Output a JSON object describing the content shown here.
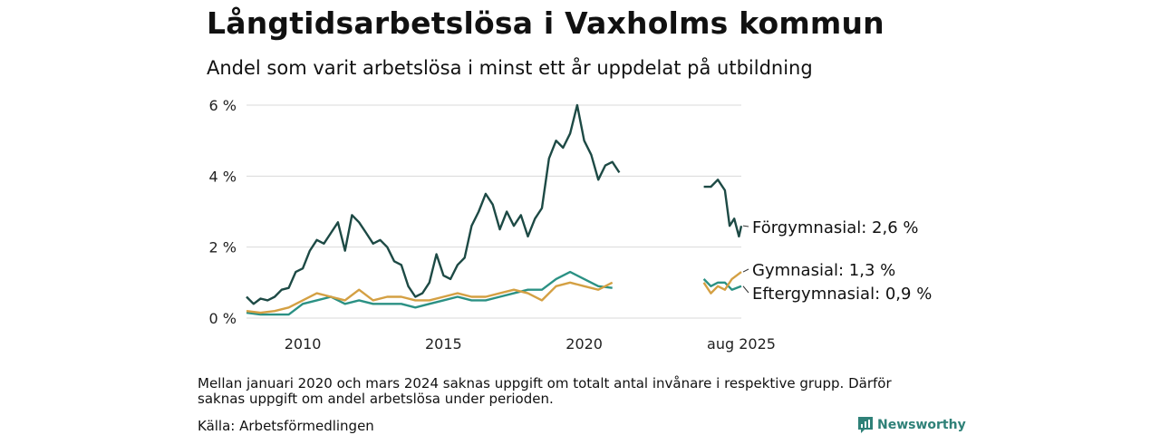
{
  "title": "Långtidsarbetslösa i Vaxholms kommun",
  "subtitle": "Andel som varit arbetslösa i minst ett år uppdelat på utbildning",
  "note": "Mellan januari 2020 och mars 2024 saknas uppgift om totalt antal invånare i respektive grupp. Därför saknas uppgift om andel arbetslösa under perioden.",
  "source": "Källa: Arbetsförmedlingen",
  "brand": "Newsworthy",
  "colors": {
    "forgymnasial": "#1d4a45",
    "gymnasial": "#d4a043",
    "eftergymnasial": "#2b9184",
    "grid": "#d9d9d9",
    "brand": "#2f8178"
  },
  "chart_data": {
    "type": "line",
    "x_tick_labels": [
      "2010",
      "2015",
      "2020",
      "aug 2025"
    ],
    "y_tick_labels": [
      "0 %",
      "2 %",
      "4 %",
      "6 %"
    ],
    "ylim": [
      0,
      6
    ],
    "grid": "horizontal",
    "note": "x values are dates (YYYY-MM); y values in percent",
    "series": [
      {
        "name": "Förgymnasial",
        "label": "Förgymnasial: 2,6 %",
        "color": "#1d4a45",
        "segments": [
          [
            [
              "2008-01",
              0.6
            ],
            [
              "2008-04",
              0.4
            ],
            [
              "2008-07",
              0.55
            ],
            [
              "2008-10",
              0.5
            ],
            [
              "2009-01",
              0.6
            ],
            [
              "2009-04",
              0.8
            ],
            [
              "2009-07",
              0.85
            ],
            [
              "2009-10",
              1.3
            ],
            [
              "2010-01",
              1.4
            ],
            [
              "2010-04",
              1.9
            ],
            [
              "2010-07",
              2.2
            ],
            [
              "2010-10",
              2.1
            ],
            [
              "2011-01",
              2.4
            ],
            [
              "2011-04",
              2.7
            ],
            [
              "2011-07",
              1.9
            ],
            [
              "2011-10",
              2.9
            ],
            [
              "2012-01",
              2.7
            ],
            [
              "2012-04",
              2.4
            ],
            [
              "2012-07",
              2.1
            ],
            [
              "2012-10",
              2.2
            ],
            [
              "2013-01",
              2.0
            ],
            [
              "2013-04",
              1.6
            ],
            [
              "2013-07",
              1.5
            ],
            [
              "2013-10",
              0.9
            ],
            [
              "2014-01",
              0.6
            ],
            [
              "2014-04",
              0.7
            ],
            [
              "2014-07",
              1.0
            ],
            [
              "2014-10",
              1.8
            ],
            [
              "2015-01",
              1.2
            ],
            [
              "2015-04",
              1.1
            ],
            [
              "2015-07",
              1.5
            ],
            [
              "2015-10",
              1.7
            ],
            [
              "2016-01",
              2.6
            ],
            [
              "2016-04",
              3.0
            ],
            [
              "2016-07",
              3.5
            ],
            [
              "2016-10",
              3.2
            ],
            [
              "2017-01",
              2.5
            ],
            [
              "2017-04",
              3.0
            ],
            [
              "2017-07",
              2.6
            ],
            [
              "2017-10",
              2.9
            ],
            [
              "2018-01",
              2.3
            ],
            [
              "2018-04",
              2.8
            ],
            [
              "2018-07",
              3.1
            ],
            [
              "2018-10",
              4.5
            ],
            [
              "2019-01",
              5.0
            ],
            [
              "2019-04",
              4.8
            ],
            [
              "2019-07",
              5.2
            ],
            [
              "2019-10",
              6.0
            ],
            [
              "2020-01",
              5.0
            ],
            [
              "2020-04",
              4.6
            ],
            [
              "2020-07",
              3.9
            ],
            [
              "2020-10",
              4.3
            ],
            [
              "2021-01",
              4.4
            ],
            [
              "2021-04",
              4.1
            ]
          ],
          [
            [
              "2024-04",
              3.7
            ],
            [
              "2024-07",
              3.7
            ],
            [
              "2024-10",
              3.9
            ],
            [
              "2025-01",
              3.6
            ],
            [
              "2025-03",
              2.6
            ],
            [
              "2025-05",
              2.8
            ],
            [
              "2025-07",
              2.3
            ],
            [
              "2025-08",
              2.6
            ]
          ]
        ]
      },
      {
        "name": "Gymnasial",
        "label": "Gymnasial: 1,3 %",
        "color": "#d4a043",
        "segments": [
          [
            [
              "2008-01",
              0.2
            ],
            [
              "2008-07",
              0.15
            ],
            [
              "2009-01",
              0.2
            ],
            [
              "2009-07",
              0.3
            ],
            [
              "2010-01",
              0.5
            ],
            [
              "2010-07",
              0.7
            ],
            [
              "2011-01",
              0.6
            ],
            [
              "2011-07",
              0.5
            ],
            [
              "2012-01",
              0.8
            ],
            [
              "2012-07",
              0.5
            ],
            [
              "2013-01",
              0.6
            ],
            [
              "2013-07",
              0.6
            ],
            [
              "2014-01",
              0.5
            ],
            [
              "2014-07",
              0.5
            ],
            [
              "2015-01",
              0.6
            ],
            [
              "2015-07",
              0.7
            ],
            [
              "2016-01",
              0.6
            ],
            [
              "2016-07",
              0.6
            ],
            [
              "2017-01",
              0.7
            ],
            [
              "2017-07",
              0.8
            ],
            [
              "2018-01",
              0.7
            ],
            [
              "2018-07",
              0.5
            ],
            [
              "2019-01",
              0.9
            ],
            [
              "2019-07",
              1.0
            ],
            [
              "2020-01",
              0.9
            ],
            [
              "2020-07",
              0.8
            ],
            [
              "2021-01",
              1.0
            ]
          ],
          [
            [
              "2024-04",
              1.0
            ],
            [
              "2024-07",
              0.7
            ],
            [
              "2024-10",
              0.9
            ],
            [
              "2025-01",
              0.8
            ],
            [
              "2025-04",
              1.1
            ],
            [
              "2025-08",
              1.3
            ]
          ]
        ]
      },
      {
        "name": "Eftergymnasial",
        "label": "Eftergymnasial: 0,9 %",
        "color": "#2b9184",
        "segments": [
          [
            [
              "2008-01",
              0.15
            ],
            [
              "2008-07",
              0.1
            ],
            [
              "2009-01",
              0.1
            ],
            [
              "2009-07",
              0.1
            ],
            [
              "2010-01",
              0.4
            ],
            [
              "2010-07",
              0.5
            ],
            [
              "2011-01",
              0.6
            ],
            [
              "2011-07",
              0.4
            ],
            [
              "2012-01",
              0.5
            ],
            [
              "2012-07",
              0.4
            ],
            [
              "2013-01",
              0.4
            ],
            [
              "2013-07",
              0.4
            ],
            [
              "2014-01",
              0.3
            ],
            [
              "2014-07",
              0.4
            ],
            [
              "2015-01",
              0.5
            ],
            [
              "2015-07",
              0.6
            ],
            [
              "2016-01",
              0.5
            ],
            [
              "2016-07",
              0.5
            ],
            [
              "2017-01",
              0.6
            ],
            [
              "2017-07",
              0.7
            ],
            [
              "2018-01",
              0.8
            ],
            [
              "2018-07",
              0.8
            ],
            [
              "2019-01",
              1.1
            ],
            [
              "2019-07",
              1.3
            ],
            [
              "2020-01",
              1.1
            ],
            [
              "2020-07",
              0.9
            ],
            [
              "2021-01",
              0.85
            ]
          ],
          [
            [
              "2024-04",
              1.1
            ],
            [
              "2024-07",
              0.9
            ],
            [
              "2024-10",
              1.0
            ],
            [
              "2025-01",
              1.0
            ],
            [
              "2025-04",
              0.8
            ],
            [
              "2025-08",
              0.9
            ]
          ]
        ]
      }
    ]
  }
}
